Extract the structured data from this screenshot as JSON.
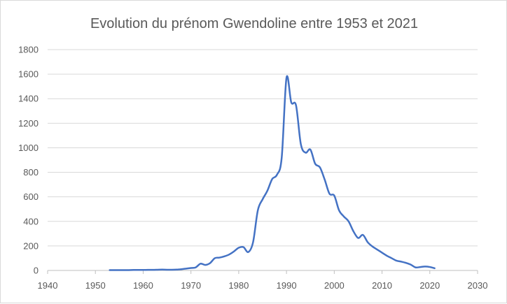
{
  "chart_data": {
    "type": "line",
    "title": "Evolution du prénom Gwendoline entre 1953 et 2021",
    "xlabel": "",
    "ylabel": "",
    "xlim": [
      1940,
      2030
    ],
    "ylim": [
      0,
      1800
    ],
    "x_ticks": [
      1940,
      1950,
      1960,
      1970,
      1980,
      1990,
      2000,
      2010,
      2020,
      2030
    ],
    "y_ticks": [
      0,
      200,
      400,
      600,
      800,
      1000,
      1200,
      1400,
      1600,
      1800
    ],
    "grid": "horizontal",
    "legend": "none",
    "series_color": "#4472C4",
    "series": [
      {
        "x": [
          1953,
          1954,
          1955,
          1956,
          1957,
          1958,
          1959,
          1960,
          1961,
          1962,
          1963,
          1964,
          1965,
          1966,
          1967,
          1968,
          1969,
          1970,
          1971,
          1972,
          1973,
          1974,
          1975,
          1976,
          1977,
          1978,
          1979,
          1980,
          1981,
          1982,
          1983,
          1984,
          1985,
          1986,
          1987,
          1988,
          1989,
          1990,
          1991,
          1992,
          1993,
          1994,
          1995,
          1996,
          1997,
          1998,
          1999,
          2000,
          2001,
          2002,
          2003,
          2004,
          2005,
          2006,
          2007,
          2008,
          2009,
          2010,
          2011,
          2012,
          2013,
          2014,
          2015,
          2016,
          2017,
          2018,
          2019,
          2020,
          2021
        ],
        "y": [
          3,
          3,
          3,
          3,
          3,
          4,
          4,
          4,
          5,
          5,
          6,
          7,
          6,
          6,
          7,
          10,
          15,
          20,
          25,
          55,
          45,
          60,
          100,
          105,
          115,
          130,
          155,
          185,
          190,
          150,
          230,
          490,
          580,
          650,
          745,
          780,
          920,
          1570,
          1370,
          1345,
          1030,
          960,
          985,
          870,
          840,
          740,
          625,
          610,
          490,
          440,
          400,
          320,
          265,
          290,
          230,
          195,
          170,
          145,
          120,
          100,
          80,
          72,
          62,
          48,
          25,
          28,
          32,
          28,
          18
        ]
      }
    ]
  }
}
